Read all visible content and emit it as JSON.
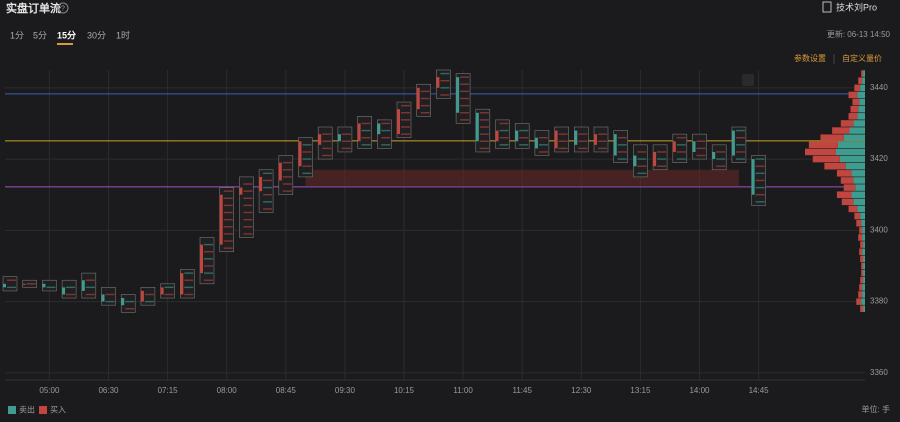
{
  "header": {
    "title": "实盘订单流",
    "help": "?",
    "account": "技术刘Pro",
    "updated": "更新: 06-13 14:50",
    "settings": "参数设置",
    "custom": "自定义量价",
    "unit": "单位: 手"
  },
  "tabs": {
    "items": [
      "1分",
      "5分",
      "15分",
      "30分",
      "1时"
    ],
    "active": 2
  },
  "chart_data": {
    "type": "candlestick",
    "categories": [
      null,
      null,
      "05:00",
      null,
      null,
      "06:30",
      null,
      null,
      "07:15",
      null,
      null,
      "08:00",
      null,
      null,
      "08:45",
      null,
      null,
      "09:30",
      null,
      null,
      "10:15",
      null,
      null,
      "11:00",
      null,
      null,
      "11:45",
      null,
      null,
      "12:30",
      null,
      null,
      "13:15",
      null,
      null,
      "14:00",
      null,
      null,
      "14:45"
    ],
    "series": [
      {
        "name": "open",
        "values": [
          3385,
          3385,
          3385,
          3384,
          3386,
          3382,
          3381,
          3380,
          3382,
          3382,
          3388,
          3396,
          3410,
          3411,
          3414,
          3418,
          3424,
          3427,
          3425,
          3430,
          3427,
          3434,
          3440,
          3443,
          3433,
          3425,
          3428,
          3426,
          3423,
          3428,
          3424,
          3427,
          3421,
          3418,
          3422,
          3425,
          3422,
          3428,
          3420
        ]
      },
      {
        "name": "high",
        "values": [
          3387,
          3386,
          3386,
          3386,
          3388,
          3384,
          3382,
          3384,
          3385,
          3389,
          3398,
          3412,
          3415,
          3417,
          3421,
          3426,
          3429,
          3429,
          3432,
          3431,
          3436,
          3441,
          3445,
          3444,
          3434,
          3431,
          3430,
          3428,
          3429,
          3429,
          3429,
          3428,
          3424,
          3424,
          3427,
          3427,
          3424,
          3429,
          3421
        ]
      },
      {
        "name": "low",
        "values": [
          3383,
          3384,
          3383,
          3381,
          3381,
          3379,
          3377,
          3379,
          3381,
          3381,
          3385,
          3394,
          3398,
          3405,
          3410,
          3415,
          3420,
          3422,
          3423,
          3423,
          3426,
          3432,
          3437,
          3430,
          3422,
          3423,
          3423,
          3421,
          3422,
          3422,
          3422,
          3419,
          3415,
          3417,
          3419,
          3420,
          3417,
          3419,
          3407
        ]
      },
      {
        "name": "close",
        "values": [
          3384,
          3385,
          3384,
          3382,
          3383,
          3380,
          3379,
          3383,
          3384,
          3388,
          3396,
          3410,
          3412,
          3415,
          3419,
          3425,
          3427,
          3425,
          3430,
          3427,
          3434,
          3440,
          3443,
          3433,
          3425,
          3428,
          3425,
          3423,
          3428,
          3424,
          3427,
          3421,
          3418,
          3422,
          3425,
          3422,
          3420,
          3421,
          3410
        ]
      }
    ],
    "legend": [
      {
        "name": "卖出",
        "color": "#3f9c8f"
      },
      {
        "name": "买入",
        "color": "#c0463f"
      }
    ],
    "up_color": "#c0463f",
    "down_color": "#3f9c8f",
    "levels": [
      {
        "value": 3438.3,
        "color": "#3b5cb8"
      },
      {
        "value": 3425.1,
        "color": "#c9a227"
      },
      {
        "value": 3412.2,
        "color": "#a24fc0"
      }
    ],
    "zone": {
      "from": 3412.5,
      "to": 3417,
      "start": 15,
      "end": 37
    },
    "profile": {
      "prices": [
        3378,
        3380,
        3382,
        3384,
        3386,
        3388,
        3390,
        3392,
        3394,
        3396,
        3398,
        3400,
        3402,
        3404,
        3406,
        3408,
        3410,
        3412,
        3414,
        3416,
        3418,
        3420,
        3422,
        3424,
        3426,
        3428,
        3430,
        3432,
        3434,
        3436,
        3438,
        3440,
        3442,
        3444
      ],
      "sell": [
        2,
        4,
        3,
        3,
        2,
        2,
        2,
        2,
        3,
        2,
        3,
        3,
        4,
        5,
        8,
        12,
        14,
        10,
        12,
        14,
        20,
        26,
        30,
        28,
        22,
        16,
        12,
        8,
        7,
        6,
        8,
        5,
        3,
        2
      ],
      "buy": [
        3,
        5,
        4,
        3,
        3,
        2,
        2,
        3,
        3,
        3,
        4,
        3,
        5,
        6,
        9,
        12,
        15,
        12,
        13,
        15,
        22,
        28,
        32,
        30,
        24,
        18,
        13,
        9,
        8,
        7,
        9,
        6,
        4,
        2
      ]
    },
    "ylim": [
      3358,
      3445
    ],
    "yticks": [
      3360,
      3380,
      3400,
      3420,
      3440
    ],
    "grid": true
  }
}
